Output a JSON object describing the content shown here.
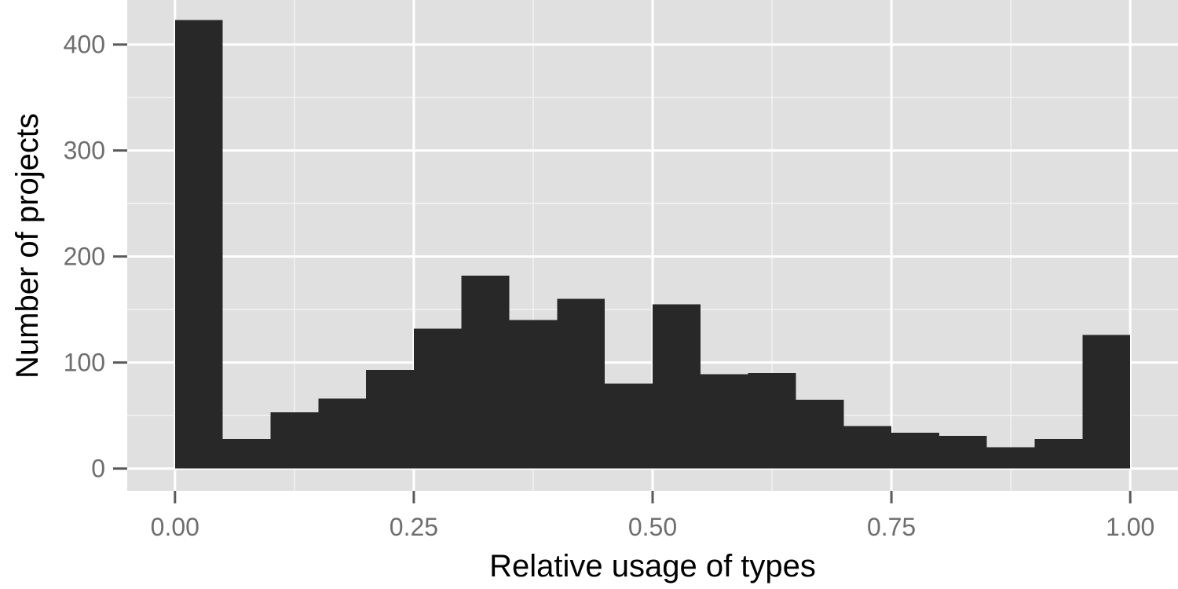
{
  "chart_data": {
    "type": "bar",
    "title": "",
    "xlabel": "Relative usage of types",
    "ylabel": "Number of projects",
    "xlim": [
      -0.05,
      1.05
    ],
    "ylim": [
      -21,
      442
    ],
    "bin_width": 0.05,
    "x_ticks": [
      0,
      0.25,
      0.5,
      0.75,
      1.0
    ],
    "x_tick_labels": [
      "0.00",
      "0.25",
      "0.50",
      "0.75",
      "1.00"
    ],
    "y_ticks": [
      0,
      100,
      200,
      300,
      400
    ],
    "y_tick_labels": [
      "0",
      "100",
      "200",
      "300",
      "400"
    ],
    "bins": [
      {
        "start": 0.0,
        "count": 423
      },
      {
        "start": 0.05,
        "count": 28
      },
      {
        "start": 0.1,
        "count": 53
      },
      {
        "start": 0.15,
        "count": 66
      },
      {
        "start": 0.2,
        "count": 93
      },
      {
        "start": 0.25,
        "count": 132
      },
      {
        "start": 0.3,
        "count": 182
      },
      {
        "start": 0.35,
        "count": 140
      },
      {
        "start": 0.4,
        "count": 160
      },
      {
        "start": 0.45,
        "count": 80
      },
      {
        "start": 0.5,
        "count": 155
      },
      {
        "start": 0.55,
        "count": 89
      },
      {
        "start": 0.6,
        "count": 90
      },
      {
        "start": 0.65,
        "count": 65
      },
      {
        "start": 0.7,
        "count": 40
      },
      {
        "start": 0.75,
        "count": 34
      },
      {
        "start": 0.8,
        "count": 31
      },
      {
        "start": 0.85,
        "count": 20
      },
      {
        "start": 0.9,
        "count": 28
      },
      {
        "start": 0.95,
        "count": 126
      }
    ],
    "grid": true,
    "legend": "none",
    "bar_color": "#282828",
    "panel_color": "#e0e0e0"
  }
}
